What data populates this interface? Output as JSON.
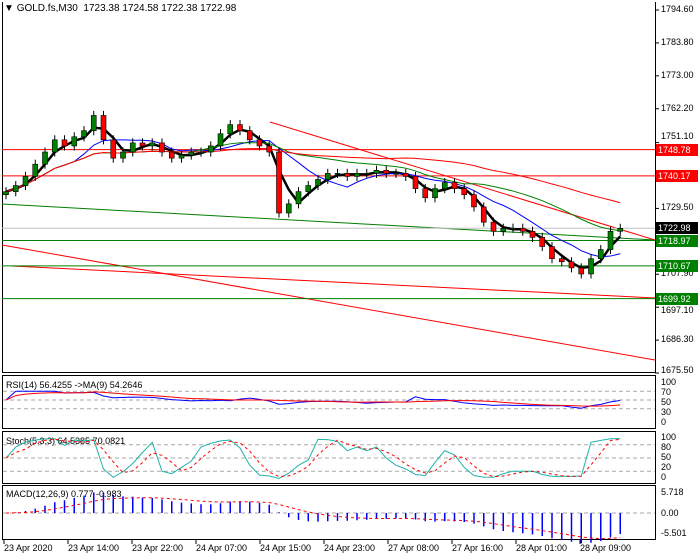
{
  "header": {
    "symbol": "GOLD.fs,M30",
    "ohlc": "1723.38 1724.58 1722.38 1722.98"
  },
  "price_axis": [
    "1794.60",
    "1783.80",
    "1773.00",
    "1762.20",
    "1751.10",
    "1729.50",
    "1707.90",
    "1697.10",
    "1686.30",
    "1675.50"
  ],
  "price_tags": [
    {
      "value": "1748.78",
      "color": "#ff0000"
    },
    {
      "value": "1740.17",
      "color": "#ff0000"
    },
    {
      "value": "1722.98",
      "color": "#000000"
    },
    {
      "value": "1718.97",
      "color": "#008000"
    },
    {
      "value": "1710.67",
      "color": "#008000"
    },
    {
      "value": "1699.92",
      "color": "#008000"
    }
  ],
  "rsi": {
    "label": "RSI(14) 56.4255  ->MA(9) 54.2646",
    "levels": [
      "100",
      "70",
      "50",
      "30",
      "0"
    ]
  },
  "stoch": {
    "label": "Stoch(5,3,3) 64.5385 70.0821",
    "levels": [
      "100",
      "80",
      "50",
      "20",
      "0"
    ]
  },
  "macd": {
    "label": "MACD(12,26,9) 0.777 -0.983",
    "levels": [
      "5.718",
      "0.00",
      "-5.501"
    ]
  },
  "time_axis": [
    "23 Apr 2020",
    "23 Apr 14:00",
    "23 Apr 22:00",
    "24 Apr 07:00",
    "24 Apr 15:00",
    "24 Apr 23:00",
    "27 Apr 08:00",
    "27 Apr 16:00",
    "28 Apr 01:00",
    "28 Apr 09:00"
  ],
  "chart_data": {
    "type": "candlestick",
    "title": "GOLD.fs,M30",
    "ylim": [
      1675.5,
      1794.6
    ],
    "closes": [
      1735,
      1737,
      1740,
      1744,
      1748,
      1752,
      1750,
      1753,
      1755,
      1760,
      1752,
      1746,
      1748,
      1751,
      1750,
      1751,
      1748,
      1746,
      1747,
      1748,
      1748,
      1750,
      1754,
      1757,
      1755,
      1752,
      1750,
      1748,
      1728,
      1731,
      1735,
      1737,
      1739,
      1741,
      1741,
      1740,
      1741,
      1741,
      1742,
      1741,
      1741,
      1740,
      1736,
      1733,
      1736,
      1738,
      1736,
      1734,
      1730,
      1725,
      1722,
      1723,
      1723,
      1722,
      1720,
      1717,
      1713,
      1712,
      1710,
      1708,
      1713,
      1716,
      1722,
      1722.98
    ],
    "levels": [
      1748.78,
      1740.17,
      1722.98,
      1718.97,
      1710.67,
      1699.92
    ],
    "colors": {
      "bull": "#008000",
      "bear": "#ff0000",
      "ma_fast": "#000000",
      "ma_mid": "#0000ff",
      "ma_slow": "#008000",
      "ma_long": "#ff0000"
    }
  }
}
